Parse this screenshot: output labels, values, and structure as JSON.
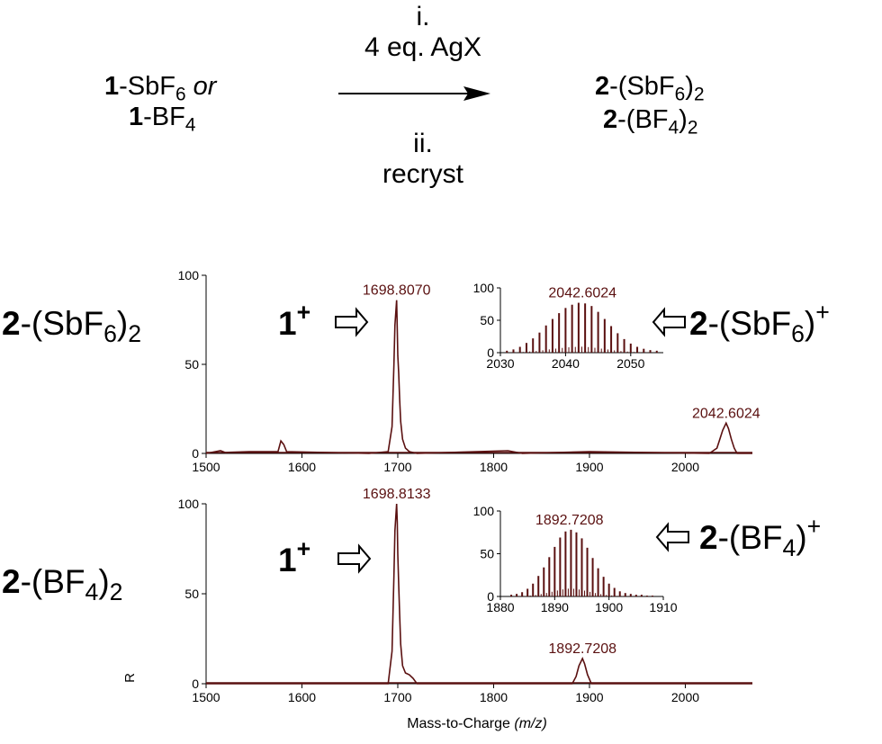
{
  "scheme": {
    "reactant_line1_num": "1",
    "reactant_line1_rest": "-SbF",
    "reactant_line1_sub": "6",
    "reactant_line1_or": " or",
    "reactant_line2_num": "1",
    "reactant_line2_rest": "-BF",
    "reactant_line2_sub": "4",
    "step1_num": "i.",
    "step1_text": "4 eq. AgX",
    "step2_num": "ii.",
    "step2_text": "recryst",
    "product1_num": "2",
    "product1_a": "-(SbF",
    "product1_sub": "6",
    "product1_b": ")",
    "product1_sub2": "2",
    "product2_num": "2",
    "product2_a": "-(BF",
    "product2_sub": "4",
    "product2_b": ")",
    "product2_sub2": "2"
  },
  "labels": {
    "top_sample_num": "2",
    "top_sample_a": "-(SbF",
    "top_sample_sub": "6",
    "top_sample_b": ")",
    "top_sample_sub2": "2",
    "bottom_sample_num": "2",
    "bottom_sample_a": "-(BF",
    "bottom_sample_sub": "4",
    "bottom_sample_b": ")",
    "bottom_sample_sub2": "2",
    "ion1_num": "1",
    "ion1_sup": "+",
    "top_ion2_num": "2",
    "top_ion2_a": "-(SbF",
    "top_ion2_sub": "6",
    "top_ion2_b": ")",
    "top_ion2_sup": "+",
    "bottom_ion2_num": "2",
    "bottom_ion2_a": "-(BF",
    "bottom_ion2_sub": "4",
    "bottom_ion2_b": ")",
    "bottom_ion2_sup": "+"
  },
  "colors": {
    "trace": "#5a1010",
    "axis": "#000000"
  },
  "chart_data": [
    {
      "type": "line",
      "panel": "top",
      "xlim": [
        1500,
        2070
      ],
      "ylim": [
        0,
        100
      ],
      "xticks": [
        1500,
        1600,
        1700,
        1800,
        1900,
        2000
      ],
      "yticks": [
        0,
        50,
        100
      ],
      "peaks": [
        {
          "x": 1698.807,
          "y": 86,
          "label": "1698.8070"
        },
        {
          "x": 2042.6024,
          "y": 17,
          "label": "2042.6024"
        }
      ],
      "series": [
        {
          "values": [
            [
              1500,
              0
            ],
            [
              1515,
              1.5
            ],
            [
              1520,
              0.5
            ],
            [
              1545,
              1
            ],
            [
              1575,
              1
            ],
            [
              1578,
              7
            ],
            [
              1581,
              5
            ],
            [
              1584,
              1
            ],
            [
              1670,
              0
            ],
            [
              1690,
              1
            ],
            [
              1694,
              15
            ],
            [
              1696,
              50
            ],
            [
              1697,
              72
            ],
            [
              1698,
              80
            ],
            [
              1698.8,
              86
            ],
            [
              1699.5,
              70
            ],
            [
              1700,
              55
            ],
            [
              1701,
              45
            ],
            [
              1702,
              30
            ],
            [
              1703,
              18
            ],
            [
              1705,
              8
            ],
            [
              1708,
              3
            ],
            [
              1712,
              1
            ],
            [
              1720,
              0
            ],
            [
              1815,
              1.5
            ],
            [
              1830,
              0
            ],
            [
              1900,
              1
            ],
            [
              2025,
              0
            ],
            [
              2033,
              3
            ],
            [
              2036,
              8
            ],
            [
              2039,
              13
            ],
            [
              2042.6,
              17
            ],
            [
              2045,
              14
            ],
            [
              2048,
              8
            ],
            [
              2051,
              3
            ],
            [
              2054,
              0
            ],
            [
              2070,
              0
            ]
          ]
        }
      ]
    },
    {
      "type": "line",
      "panel": "top-inset",
      "xlim": [
        2030,
        2055
      ],
      "ylim": [
        0,
        100
      ],
      "xticks": [
        2030,
        2040,
        2050
      ],
      "yticks": [
        0,
        50,
        100
      ],
      "peaks": [
        {
          "x": 2042.6024,
          "y": 77,
          "label": "2042.6024"
        }
      ],
      "series": [
        {
          "values": [
            [
              2031,
              3
            ],
            [
              2032,
              5
            ],
            [
              2033,
              9
            ],
            [
              2034,
              15
            ],
            [
              2035,
              22
            ],
            [
              2036,
              31
            ],
            [
              2037,
              42
            ],
            [
              2038,
              52
            ],
            [
              2039,
              61
            ],
            [
              2040,
              69
            ],
            [
              2041,
              74
            ],
            [
              2042,
              77
            ],
            [
              2043,
              76
            ],
            [
              2044,
              72
            ],
            [
              2045,
              63
            ],
            [
              2046,
              52
            ],
            [
              2047,
              41
            ],
            [
              2048,
              30
            ],
            [
              2049,
              21
            ],
            [
              2050,
              14
            ],
            [
              2051,
              9
            ],
            [
              2052,
              6
            ],
            [
              2053,
              4
            ],
            [
              2054,
              3
            ]
          ]
        }
      ]
    },
    {
      "type": "line",
      "panel": "bottom",
      "xlim": [
        1500,
        2070
      ],
      "ylim": [
        0,
        100
      ],
      "xticks": [
        1500,
        1600,
        1700,
        1800,
        1900,
        2000
      ],
      "yticks": [
        0,
        50,
        100
      ],
      "xlabel": "Mass-to-Charge",
      "xlabel_italic": "(m/z)",
      "ylabel": "R",
      "peaks": [
        {
          "x": 1698.8133,
          "y": 100,
          "label": "1698.8133"
        },
        {
          "x": 1892.7208,
          "y": 14,
          "label": "1892.7208"
        }
      ],
      "series": [
        {
          "values": [
            [
              1500,
              0
            ],
            [
              1690,
              0
            ],
            [
              1694,
              18
            ],
            [
              1696,
              60
            ],
            [
              1697,
              85
            ],
            [
              1698.8,
              100
            ],
            [
              1699.5,
              90
            ],
            [
              1700,
              72
            ],
            [
              1701,
              55
            ],
            [
              1702,
              38
            ],
            [
              1703,
              22
            ],
            [
              1705,
              10
            ],
            [
              1708,
              6
            ],
            [
              1712,
              5
            ],
            [
              1716,
              3
            ],
            [
              1720,
              0
            ],
            [
              1882,
              0
            ],
            [
              1886,
              4
            ],
            [
              1889,
              10
            ],
            [
              1892.7,
              14
            ],
            [
              1895,
              11
            ],
            [
              1898,
              5
            ],
            [
              1902,
              0
            ],
            [
              2070,
              0
            ]
          ]
        }
      ]
    },
    {
      "type": "line",
      "panel": "bottom-inset",
      "xlim": [
        1880,
        1910
      ],
      "ylim": [
        0,
        100
      ],
      "xticks": [
        1880,
        1890,
        1900,
        1910
      ],
      "yticks": [
        0,
        50,
        100
      ],
      "peaks": [
        {
          "x": 1892.7208,
          "y": 78,
          "label": "1892.7208"
        }
      ],
      "series": [
        {
          "values": [
            [
              1882,
              2
            ],
            [
              1883,
              3
            ],
            [
              1884,
              5
            ],
            [
              1885,
              9
            ],
            [
              1886,
              15
            ],
            [
              1887,
              24
            ],
            [
              1888,
              34
            ],
            [
              1889,
              46
            ],
            [
              1890,
              58
            ],
            [
              1891,
              69
            ],
            [
              1892,
              76
            ],
            [
              1893,
              78
            ],
            [
              1894,
              75
            ],
            [
              1895,
              68
            ],
            [
              1896,
              57
            ],
            [
              1897,
              45
            ],
            [
              1898,
              33
            ],
            [
              1899,
              23
            ],
            [
              1900,
              15
            ],
            [
              1901,
              10
            ],
            [
              1902,
              6
            ],
            [
              1903,
              4
            ],
            [
              1904,
              3
            ],
            [
              1905,
              2
            ],
            [
              1906,
              2
            ],
            [
              1907,
              1
            ],
            [
              1908,
              1
            ]
          ]
        }
      ]
    }
  ]
}
